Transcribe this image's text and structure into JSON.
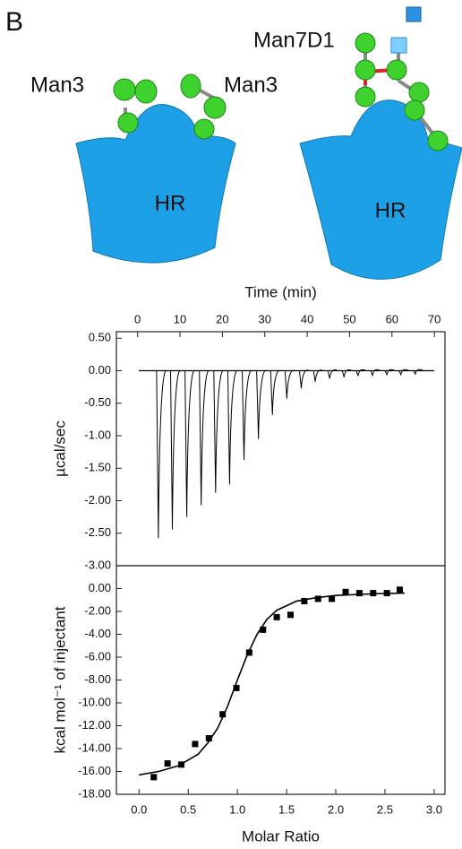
{
  "diagram": {
    "panel_label": "B",
    "left": {
      "glycan_labels": [
        "Man3",
        "Man3"
      ],
      "core": "HR"
    },
    "right": {
      "glycan_label": "Man7D1",
      "core": "HR"
    }
  },
  "chart_data": [
    {
      "type": "thermogram",
      "x_label": "Time (min)",
      "y_label": "µcal/sec",
      "color": "#000000",
      "xlim": [
        -5,
        72.5
      ],
      "xticks": [
        0,
        10,
        20,
        30,
        40,
        50,
        60,
        70
      ],
      "ylim": [
        -3,
        0.6
      ],
      "yticks": [
        {
          "value": 0.5,
          "label": "0.50"
        },
        {
          "value": 0,
          "label": "0.00"
        },
        {
          "value": -0.5,
          "label": "-0.50"
        },
        {
          "value": -1,
          "label": "-1.00"
        },
        {
          "value": -1.5,
          "label": "-1.50"
        },
        {
          "value": -2,
          "label": "-2.00"
        },
        {
          "value": -2.5,
          "label": "-2.50"
        },
        {
          "value": -3,
          "label": "-3.00"
        }
      ],
      "x": [
        4.9,
        8.2,
        11.6,
        15.0,
        18.4,
        21.7,
        25.1,
        28.5,
        31.8,
        35.2,
        38.6,
        41.9,
        45.3,
        48.7,
        52.0,
        55.4,
        58.8,
        62.1,
        65.5
      ],
      "values": [
        -2.58,
        -2.44,
        -2.25,
        -2.07,
        -1.88,
        -1.75,
        -1.37,
        -1.05,
        -0.68,
        -0.43,
        -0.27,
        -0.17,
        -0.12,
        -0.1,
        -0.08,
        -0.07,
        -0.06,
        -0.06,
        -0.05
      ]
    },
    {
      "type": "scatter",
      "x_label": "Molar Ratio",
      "y_label": "kcal mol⁻¹ of injectant",
      "xlim": [
        -0.23,
        3.11
      ],
      "xticks": [
        {
          "value": 0,
          "label": "0.0"
        },
        0.5,
        {
          "value": 1,
          "label": "1.0"
        },
        1.5,
        {
          "value": 2,
          "label": "2.0"
        },
        2.5,
        {
          "value": 3,
          "label": "3.0"
        }
      ],
      "ylim": [
        -18,
        2
      ],
      "yticks": [
        {
          "value": 0,
          "label": "0.00"
        },
        {
          "value": -2,
          "label": "-2.00"
        },
        {
          "value": -4,
          "label": "-4.00"
        },
        {
          "value": -6,
          "label": "-6.00"
        },
        {
          "value": -8,
          "label": "-8.00"
        },
        {
          "value": -10,
          "label": "-10.00"
        },
        {
          "value": -12,
          "label": "-12.00"
        },
        {
          "value": -14,
          "label": "-14.00"
        },
        {
          "value": -16,
          "label": "-16.00"
        },
        {
          "value": -18,
          "label": "-18.00"
        }
      ],
      "series": [
        {
          "type": "scatter",
          "color": "#000000",
          "x": [
            0.15,
            0.29,
            0.43,
            0.57,
            0.71,
            0.85,
            0.99,
            1.12,
            1.26,
            1.4,
            1.54,
            1.68,
            1.82,
            1.96,
            2.1,
            2.24,
            2.38,
            2.52,
            2.65
          ],
          "values": [
            -16.5,
            -15.3,
            -15.4,
            -13.6,
            -13.1,
            -11.0,
            -8.7,
            -5.6,
            -3.6,
            -2.5,
            -2.3,
            -1.1,
            -0.9,
            -0.9,
            -0.3,
            -0.4,
            -0.4,
            -0.4,
            -0.1
          ]
        },
        {
          "type": "line",
          "color": "#000000",
          "x": [
            0,
            0.2,
            0.4,
            0.6,
            0.7,
            0.8,
            0.9,
            1.0,
            1.1,
            1.2,
            1.3,
            1.4,
            1.6,
            1.8,
            2.0,
            2.4,
            2.7
          ],
          "values": [
            -16.3,
            -16.0,
            -15.5,
            -14.5,
            -13.5,
            -12.2,
            -10.3,
            -8.0,
            -5.8,
            -4.0,
            -2.7,
            -1.9,
            -1.1,
            -0.8,
            -0.6,
            -0.45,
            -0.4
          ]
        }
      ]
    }
  ]
}
